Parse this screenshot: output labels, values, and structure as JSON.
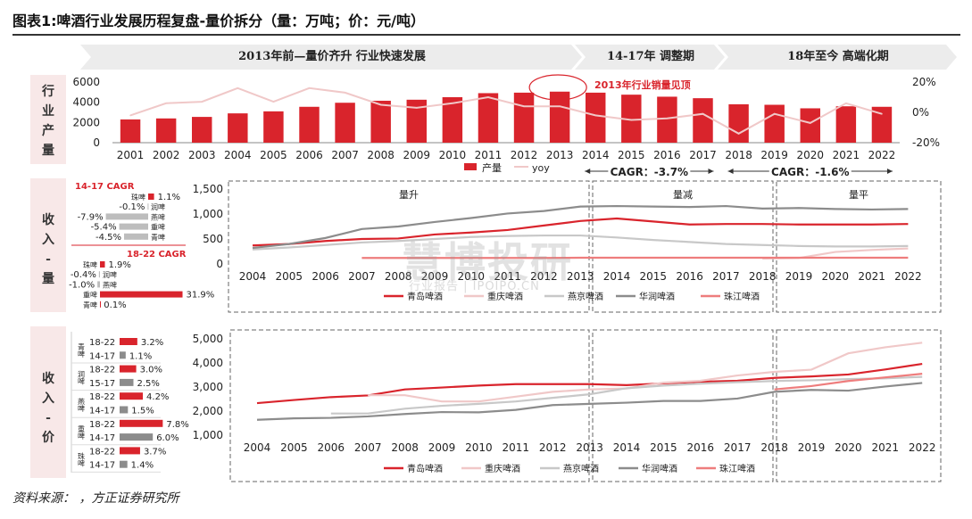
{
  "title": "图表1:啤酒行业发展历程复盘-量价拆分（量：万吨；价：元/吨）",
  "source": "资料来源：        ，方正证券研究所",
  "watermark": "慧博投研",
  "watermark_sub": "行业报告 | IPOIPO.CN",
  "phases": [
    "2013年前—量价齐升 行业快速发展",
    "14-17年 调整期",
    "18年至今 高端化期"
  ],
  "section_labels": {
    "output": "行业产量",
    "revenue_volume": "收入-量",
    "revenue_price": "收入-价"
  },
  "colors": {
    "red": "#d9242c",
    "pink": "#f0c8c8",
    "lightgray": "#c8c8c8",
    "gray": "#8c8c8c",
    "salmon": "#ee7d7d",
    "section_bg": "#f8e8e8",
    "phase_bg": "#ececec"
  },
  "chart_data": [
    {
      "type": "bar",
      "id": "industry_output",
      "categories": [
        "2001",
        "2002",
        "2003",
        "2004",
        "2005",
        "2006",
        "2007",
        "2008",
        "2009",
        "2010",
        "2011",
        "2012",
        "2013",
        "2014",
        "2015",
        "2016",
        "2017",
        "2018",
        "2019",
        "2020",
        "2021",
        "2022"
      ],
      "series": [
        {
          "name": "产量",
          "type": "bar",
          "axis": "left",
          "values": [
            2300,
            2400,
            2550,
            2900,
            3100,
            3550,
            3950,
            4150,
            4250,
            4500,
            4900,
            4950,
            5050,
            4950,
            4750,
            4550,
            4400,
            3800,
            3750,
            3400,
            3600,
            3550
          ]
        },
        {
          "name": "yoy",
          "type": "line",
          "axis": "right",
          "values": [
            -2,
            6,
            7,
            16,
            7,
            16,
            13,
            5,
            3,
            6,
            10,
            4,
            4,
            -2,
            -5,
            -4,
            -1,
            -14,
            -1,
            -7,
            6,
            -1
          ]
        }
      ],
      "ylim": [
        0,
        6000
      ],
      "yticks": [
        "6000",
        "4000",
        "2000",
        "0"
      ],
      "y2lim": [
        -20,
        20
      ],
      "y2ticks": [
        "20%",
        "0%",
        "-20%"
      ],
      "annotation": "2013年行业销量见顶",
      "cagr_labels": [
        "CAGR：-3.7%",
        "CAGR：-1.6%"
      ],
      "legend": [
        "产量",
        "yoy"
      ]
    },
    {
      "type": "line",
      "id": "revenue_volume",
      "categories": [
        "2004",
        "2005",
        "2006",
        "2007",
        "2008",
        "2009",
        "2010",
        "2011",
        "2012",
        "2013",
        "2014",
        "2015",
        "2016",
        "2017",
        "2018",
        "2019",
        "2020",
        "2021",
        "2022"
      ],
      "series": [
        {
          "name": "青岛啤酒",
          "color": "red",
          "values": [
            370,
            400,
            460,
            500,
            510,
            590,
            630,
            680,
            770,
            860,
            910,
            850,
            790,
            800,
            800,
            790,
            790,
            790,
            800
          ]
        },
        {
          "name": "重庆啤酒",
          "color": "pink",
          "values": [
            null,
            null,
            null,
            null,
            null,
            null,
            null,
            null,
            null,
            null,
            null,
            null,
            null,
            null,
            110,
            120,
            240,
            280,
            310
          ]
        },
        {
          "name": "燕京啤酒",
          "color": "lightgray",
          "values": [
            290,
            330,
            380,
            430,
            460,
            500,
            540,
            560,
            570,
            570,
            530,
            480,
            440,
            400,
            380,
            360,
            350,
            350,
            360
          ]
        },
        {
          "name": "华润啤酒",
          "color": "gray",
          "values": [
            320,
            400,
            520,
            700,
            750,
            840,
            920,
            1010,
            1060,
            1150,
            1160,
            1150,
            1140,
            1160,
            1110,
            1120,
            1100,
            1090,
            1100
          ]
        },
        {
          "name": "珠江啤酒",
          "color": "salmon",
          "values": [
            null,
            null,
            null,
            120,
            120,
            120,
            120,
            120,
            120,
            125,
            125,
            125,
            125,
            125,
            125,
            125,
            125,
            125,
            125
          ]
        }
      ],
      "ylim": [
        0,
        1500
      ],
      "yticks": [
        "1,500",
        "1,000",
        "500",
        "0"
      ],
      "panel_labels": [
        "量升",
        "量减",
        "量平"
      ],
      "table_groups": [
        {
          "header": "14-17 CAGR",
          "rows": [
            {
              "name": "珠啤",
              "value": 1.1,
              "label": "1.1%"
            },
            {
              "name": "润啤",
              "value": -0.1,
              "label": "-0.1%"
            },
            {
              "name": "燕啤",
              "value": -7.9,
              "label": "-7.9%"
            },
            {
              "name": "重啤",
              "value": -5.4,
              "label": "-5.4%"
            },
            {
              "name": "青啤",
              "value": -4.5,
              "label": "-4.5%"
            }
          ]
        },
        {
          "header": "18-22 CAGR",
          "rows": [
            {
              "name": "珠啤",
              "value": 1.9,
              "label": "1.9%"
            },
            {
              "name": "润啤",
              "value": -0.4,
              "label": "-0.4%"
            },
            {
              "name": "燕啤",
              "value": -1.0,
              "label": "-1.0%"
            },
            {
              "name": "重啤",
              "value": 31.9,
              "label": "31.9%"
            },
            {
              "name": "青啤",
              "value": 0.1,
              "label": "0.1%"
            }
          ]
        }
      ]
    },
    {
      "type": "line",
      "id": "revenue_price",
      "categories": [
        "2004",
        "2005",
        "2006",
        "2007",
        "2008",
        "2009",
        "2010",
        "2011",
        "2012",
        "2013",
        "2014",
        "2015",
        "2016",
        "2017",
        "2018",
        "2019",
        "2020",
        "2021",
        "2022"
      ],
      "series": [
        {
          "name": "青岛啤酒",
          "color": "red",
          "values": [
            2330,
            2460,
            2580,
            2650,
            2900,
            2980,
            3060,
            3120,
            3120,
            3120,
            3080,
            3150,
            3220,
            3260,
            3380,
            3440,
            3520,
            3730,
            3960
          ]
        },
        {
          "name": "重庆啤酒",
          "color": "pink",
          "values": [
            null,
            null,
            null,
            2660,
            2660,
            2400,
            2400,
            2600,
            2800,
            2900,
            2940,
            3180,
            3260,
            3480,
            3630,
            3720,
            4400,
            4650,
            4840
          ]
        },
        {
          "name": "燕京啤酒",
          "color": "lightgray",
          "values": [
            null,
            null,
            1900,
            1900,
            2100,
            2220,
            2300,
            2400,
            2550,
            2700,
            2950,
            3060,
            3140,
            3200,
            3250,
            3280,
            3330,
            3360,
            3420
          ]
        },
        {
          "name": "华润啤酒",
          "color": "gray",
          "values": [
            1640,
            1700,
            1720,
            1780,
            1880,
            1960,
            1950,
            2050,
            2250,
            2300,
            2350,
            2420,
            2420,
            2520,
            2800,
            2880,
            2850,
            3020,
            3170
          ]
        },
        {
          "name": "珠江啤酒",
          "color": "salmon",
          "values": [
            null,
            null,
            null,
            null,
            null,
            null,
            null,
            null,
            null,
            null,
            null,
            null,
            null,
            null,
            2900,
            3040,
            3250,
            3400,
            3550
          ]
        }
      ],
      "ylim": [
        1000,
        5000
      ],
      "yticks": [
        "5,000",
        "4,000",
        "3,000",
        "2,000",
        "1,000"
      ],
      "table_rows": [
        {
          "company": "青啤",
          "period": "18-22",
          "value": 3.2,
          "label": "3.2%"
        },
        {
          "company": "青啤",
          "period": "14-17",
          "value": 1.1,
          "label": "1.1%"
        },
        {
          "company": "润啤",
          "period": "18-22",
          "value": 3.0,
          "label": "3.0%"
        },
        {
          "company": "润啤",
          "period": "15-17",
          "value": 2.5,
          "label": "2.5%"
        },
        {
          "company": "燕啤",
          "period": "18-22",
          "value": 4.2,
          "label": "4.2%"
        },
        {
          "company": "燕啤",
          "period": "14-17",
          "value": 1.5,
          "label": "1.5%"
        },
        {
          "company": "重啤",
          "period": "18-22",
          "value": 7.8,
          "label": "7.8%"
        },
        {
          "company": "重啤",
          "period": "14-17",
          "value": 6.0,
          "label": "6.0%"
        },
        {
          "company": "珠啤",
          "period": "18-22",
          "value": 3.7,
          "label": "3.7%"
        },
        {
          "company": "珠啤",
          "period": "14-17",
          "value": 1.4,
          "label": "1.4%"
        }
      ]
    }
  ]
}
